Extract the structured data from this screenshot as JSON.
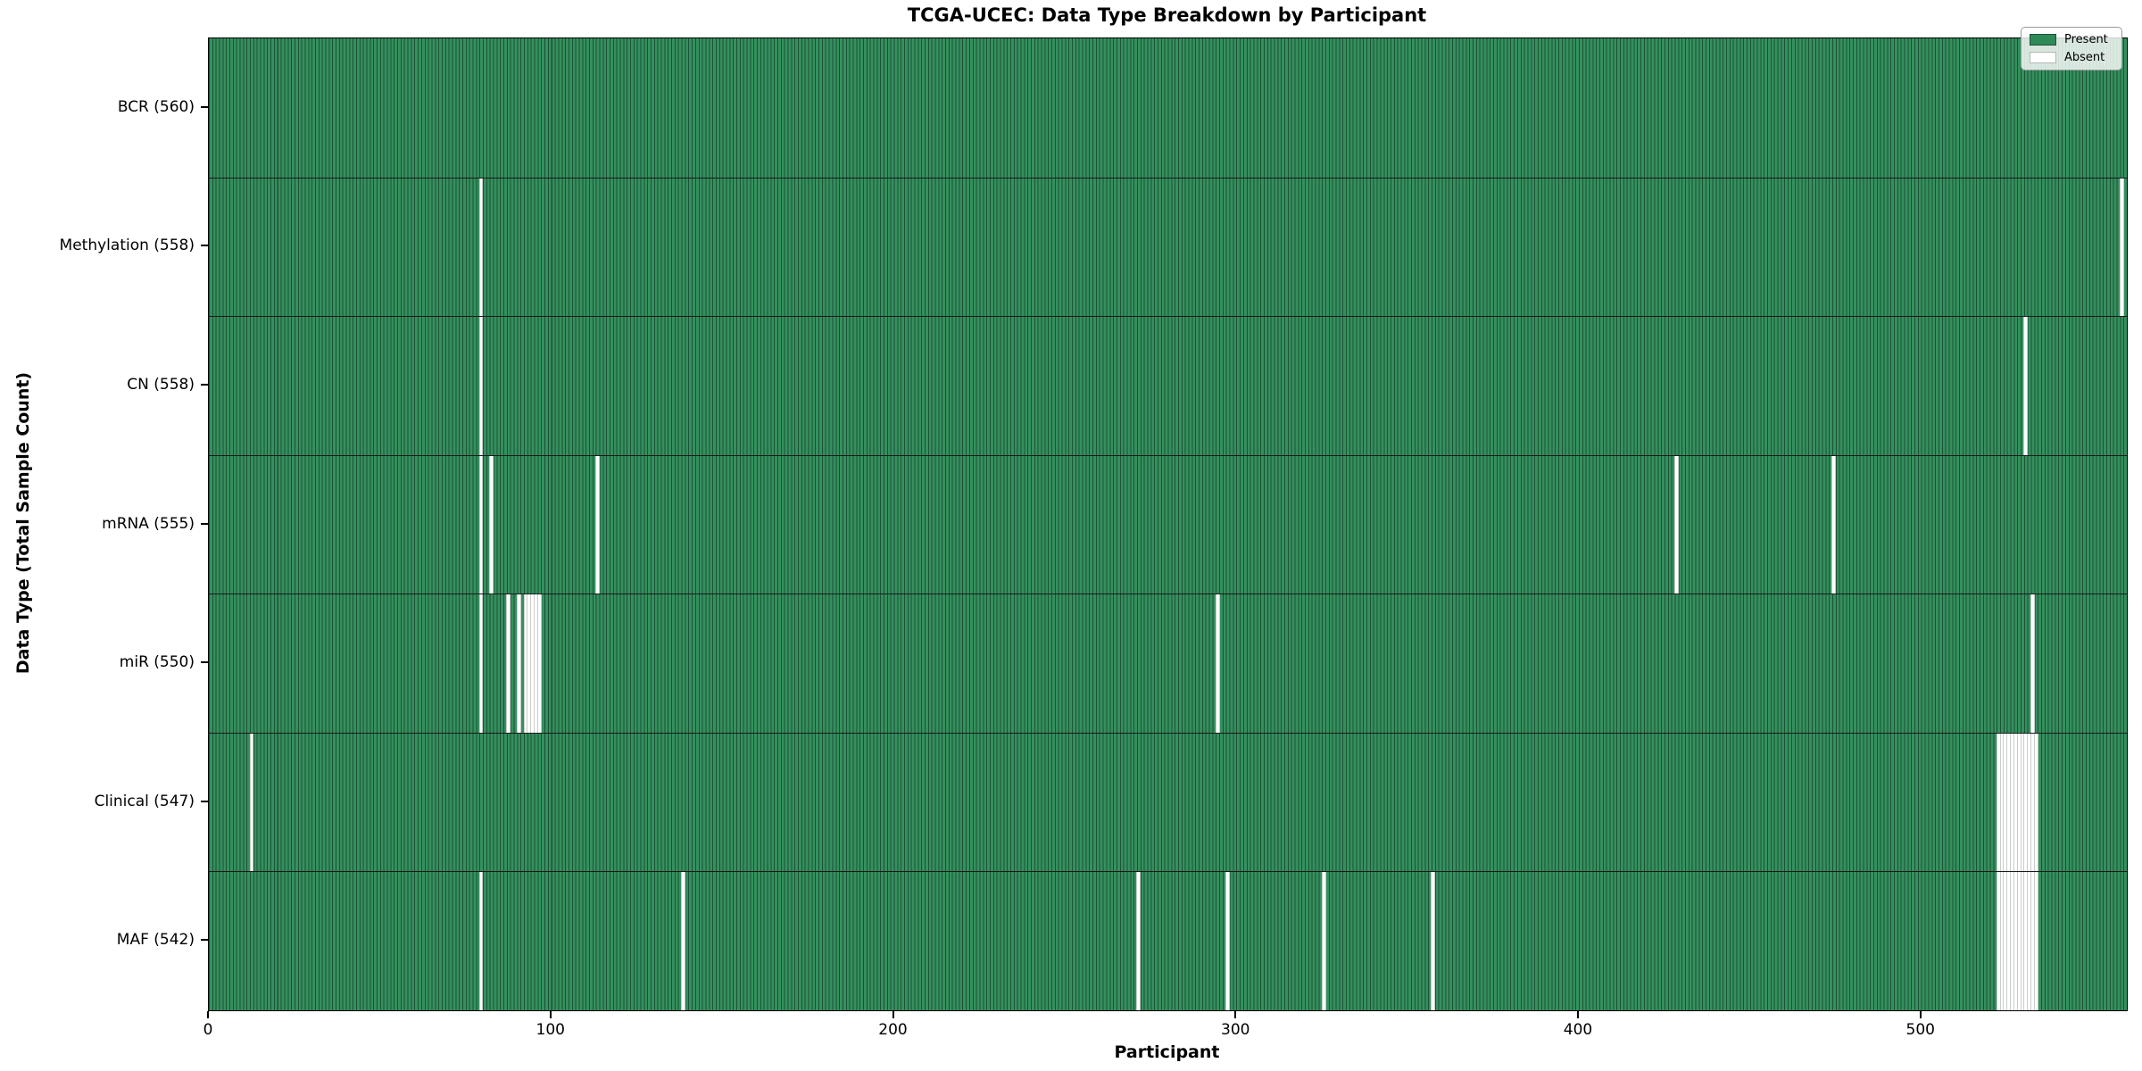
{
  "figure": {
    "title": "TCGA-UCEC: Data Type Breakdown by Participant"
  },
  "chart_data": {
    "type": "heatmap",
    "title": "TCGA-UCEC: Data Type Breakdown by Participant",
    "xlabel": "Participant",
    "ylabel": "Data Type (Total Sample Count)",
    "x_ticks": [
      0,
      100,
      200,
      300,
      400,
      500
    ],
    "xlim": [
      0,
      560
    ],
    "total_participants": 560,
    "grid": false,
    "legend_position": "upper right",
    "legend_items": [
      {
        "label": "Present",
        "color": "#2e8b57"
      },
      {
        "label": "Absent",
        "color": "#ffffff"
      }
    ],
    "colors": {
      "present_fill": "#35905e",
      "bar_edge": "#1c5236",
      "absent_fill": "#ffffff",
      "row_separator": "#1a1a1a"
    },
    "rows": [
      {
        "label": "BCR (560)",
        "data_type": "BCR",
        "present_count": 560,
        "absent_participants": []
      },
      {
        "label": "Methylation (558)",
        "data_type": "Methylation",
        "present_count": 558,
        "absent_participants": [
          79,
          558
        ]
      },
      {
        "label": "CN (558)",
        "data_type": "CN",
        "present_count": 558,
        "absent_participants": [
          79,
          530
        ]
      },
      {
        "label": "mRNA (555)",
        "data_type": "mRNA",
        "present_count": 555,
        "absent_participants": [
          79,
          82,
          113,
          428,
          474
        ]
      },
      {
        "label": "miR (550)",
        "data_type": "miR",
        "present_count": 550,
        "absent_participants": [
          79,
          87,
          90,
          92,
          93,
          94,
          95,
          96,
          294,
          532
        ]
      },
      {
        "label": "Clinical (547)",
        "data_type": "Clinical",
        "present_count": 547,
        "absent_participants": [
          12,
          522,
          523,
          524,
          525,
          526,
          527,
          528,
          529,
          530,
          531,
          532,
          533
        ]
      },
      {
        "label": "MAF (542)",
        "data_type": "MAF",
        "present_count": 542,
        "absent_participants": [
          79,
          138,
          271,
          297,
          325,
          357,
          522,
          523,
          524,
          525,
          526,
          527,
          528,
          529,
          530,
          531,
          532,
          533
        ]
      }
    ]
  }
}
